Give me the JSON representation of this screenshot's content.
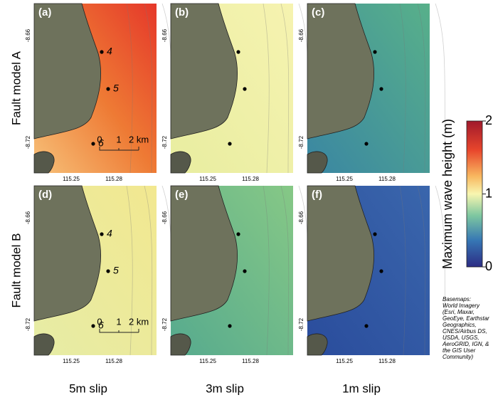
{
  "rows": [
    "Fault model A",
    "Fault model B"
  ],
  "columns": [
    "5m slip",
    "3m slip",
    "1m slip"
  ],
  "panels": [
    "(a)",
    "(b)",
    "(c)",
    "(d)",
    "(e)",
    "(f)"
  ],
  "latitude_ticks": [
    "-8.66",
    "-8.72"
  ],
  "longitude_ticks": [
    "115.25",
    "115.28"
  ],
  "points": [
    "4",
    "5",
    "6"
  ],
  "scale_bar": [
    "0",
    "1",
    "2 km"
  ],
  "colorbar": {
    "label": "Maximum wave height (m)",
    "lim": [
      0,
      2
    ],
    "ticks": [
      0,
      1,
      2
    ]
  },
  "credit": [
    "Basemaps:",
    "World Imagery",
    "(Esri, Maxar,",
    "GeoEye, Earthstar",
    "Geographics,",
    "CNES/Airbus DS,",
    "USDA, USGS,",
    "AeroGRID, IGN, &",
    "the GIS User",
    "Community)"
  ]
}
